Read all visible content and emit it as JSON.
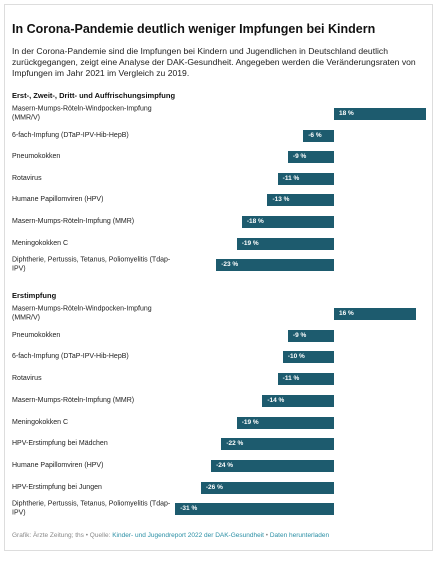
{
  "title": "In Corona-Pandemie deutlich weniger Impfungen bei Kindern",
  "subtitle": "In der Corona-Pandemie sind die Impfungen bei Kindern und Jugendlichen in Deutschland deutlich zurückgegangen, zeigt eine Analyse der DAK-Gesundheit. Angegeben werden die Veränderungsraten von Impfungen im Jahr 2021 im Vergleich zu 2019.",
  "footer": {
    "credit": "Grafik: Ärzte Zeitung; ths",
    "source_label": "Quelle:",
    "source_link": "Kinder- und Jugendreport 2022 der DAK-Gesundheit",
    "download": "Daten herunterladen"
  },
  "chart_data": [
    {
      "type": "bar",
      "title": "Erst-, Zweit-, Dritt- und Auffrischungsimpfung",
      "color": "#1d5b6e",
      "categories": [
        "Masern-Mumps-Röteln-Windpocken-Impfung (MMR/V)",
        "6-fach-Impfung (DTaP-IPV-Hib-HepB)",
        "Pneumokokken",
        "Rotavirus",
        "Humane Papillomviren (HPV)",
        "Masern-Mumps-Röteln-Impfung (MMR)",
        "Meningokokken C",
        "Diphtherie, Pertussis, Tetanus, Poliomyelitis (Tdap-IPV)"
      ],
      "values": [
        18,
        -6,
        -9,
        -11,
        -13,
        -18,
        -19,
        -23
      ],
      "value_labels": [
        "18 %",
        "-6 %",
        "-9 %",
        "-11 %",
        "-13 %",
        "-18 %",
        "-19 %",
        "-23 %"
      ]
    },
    {
      "type": "bar",
      "title": "Erstimpfung",
      "color": "#1d5b6e",
      "categories": [
        "Masern-Mumps-Röteln-Windpocken-Impfung (MMR/V)",
        "Pneumokokken",
        "6-fach-Impfung (DTaP-IPV-Hib-HepB)",
        "Rotavirus",
        "Masern-Mumps-Röteln-Impfung (MMR)",
        "Meningokokken C",
        "HPV-Erstimpfung bei Mädchen",
        "Humane Papillomviren (HPV)",
        "HPV-Erstimpfung bei Jungen",
        "Diphtherie, Pertussis, Tetanus, Poliomyelitis (Tdap-IPV)"
      ],
      "values": [
        16,
        -9,
        -10,
        -11,
        -14,
        -19,
        -22,
        -24,
        -26,
        -31
      ],
      "value_labels": [
        "16 %",
        "-9 %",
        "-10 %",
        "-11 %",
        "-14 %",
        "-19 %",
        "-22 %",
        "-24 %",
        "-26 %",
        "-31 %"
      ]
    }
  ]
}
